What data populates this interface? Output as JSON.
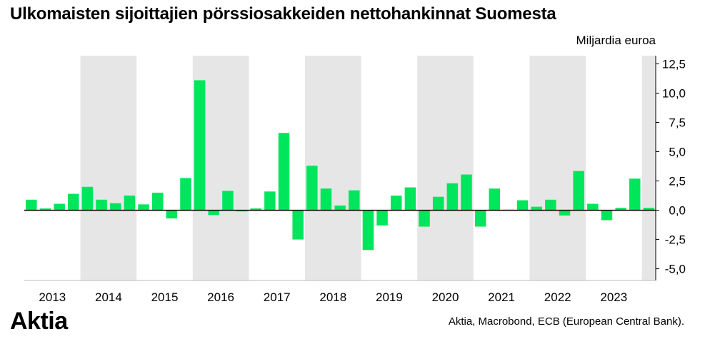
{
  "header": {
    "title": "Ulkomaisten sijoittajien pörssiosakkeiden nettohankinnat Suomesta"
  },
  "unit_label": "Miljardia euroa",
  "brand": {
    "logo_text": "Aktia"
  },
  "footer": {
    "source": "Aktia, Macrobond, ECB (European Central Bank)."
  },
  "colors": {
    "bar": "#00e65c",
    "band": "#e6e6e6",
    "axis": "#000000",
    "baseline": "#000000"
  },
  "chart_data": {
    "type": "bar",
    "x_tick_labels": [
      "2013",
      "2014",
      "2015",
      "2016",
      "2017",
      "2018",
      "2019",
      "2020",
      "2021",
      "2022",
      "2023"
    ],
    "y_tick_labels": [
      "12,5",
      "10,0",
      "7,5",
      "5,0",
      "2,5",
      "0,0",
      "-2,5",
      "-5,0"
    ],
    "ylim": [
      -6,
      13.2
    ],
    "yaxis_position": "right",
    "shaded_alternate_years": true,
    "categories": [
      "2013Q1",
      "2013Q2",
      "2013Q3",
      "2013Q4",
      "2014Q1",
      "2014Q2",
      "2014Q3",
      "2014Q4",
      "2015Q1",
      "2015Q2",
      "2015Q3",
      "2015Q4",
      "2016Q1",
      "2016Q2",
      "2016Q3",
      "2016Q4",
      "2017Q1",
      "2017Q2",
      "2017Q3",
      "2017Q4",
      "2018Q1",
      "2018Q2",
      "2018Q3",
      "2018Q4",
      "2019Q1",
      "2019Q2",
      "2019Q3",
      "2019Q4",
      "2020Q1",
      "2020Q2",
      "2020Q3",
      "2020Q4",
      "2021Q1",
      "2021Q2",
      "2021Q3",
      "2021Q4",
      "2022Q1",
      "2022Q2",
      "2022Q3",
      "2022Q4",
      "2023Q1",
      "2023Q2",
      "2023Q3",
      "2023Q4",
      "2024Q1"
    ],
    "values": [
      0.9,
      0.15,
      0.55,
      1.4,
      2.0,
      0.9,
      0.6,
      1.25,
      0.5,
      1.5,
      -0.7,
      2.75,
      11.1,
      -0.4,
      1.65,
      -0.1,
      0.15,
      1.6,
      6.6,
      -2.5,
      3.8,
      1.85,
      0.4,
      1.7,
      -3.4,
      -1.3,
      1.25,
      1.95,
      -1.4,
      1.15,
      2.3,
      3.05,
      -1.4,
      1.85,
      0.05,
      0.85,
      0.3,
      0.9,
      -0.45,
      3.35,
      0.55,
      -0.85,
      0.2,
      2.7,
      0.2
    ]
  }
}
